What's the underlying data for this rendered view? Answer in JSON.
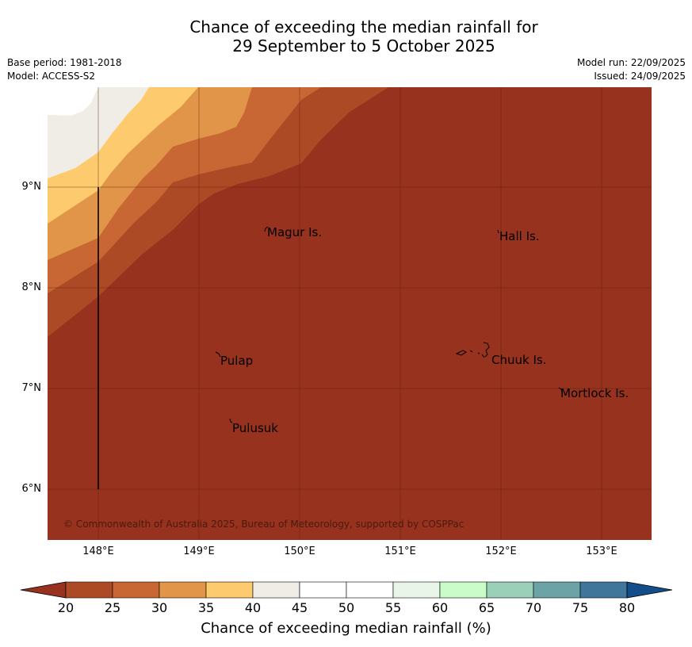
{
  "title": {
    "line1": "Chance of exceeding the median rainfall for",
    "line2": "29 September to 5 October 2025"
  },
  "meta": {
    "base_period": "Base period: 1981-2018",
    "model": "Model: ACCESS-S2",
    "model_run": "Model run: 22/09/2025",
    "issued": "Issued: 24/09/2025"
  },
  "map": {
    "latitude_labels": [
      "9°N",
      "8°N",
      "7°N",
      "6°N"
    ],
    "longitude_labels": [
      "148°E",
      "149°E",
      "150°E",
      "151°E",
      "152°E",
      "153°E"
    ],
    "places": [
      {
        "name": "Magur Is."
      },
      {
        "name": "Hall Is."
      },
      {
        "name": "Pulap"
      },
      {
        "name": "Chuuk Is."
      },
      {
        "name": "Mortlock Is."
      },
      {
        "name": "Pulusuk"
      }
    ],
    "copyright": "© Commonwealth of Australia 2025, Bureau of Meteorology, supported by COSPPac"
  },
  "colorbar": {
    "label": "Chance of exceeding median rainfall (%)",
    "ticks": [
      "20",
      "25",
      "30",
      "35",
      "40",
      "45",
      "50",
      "55",
      "60",
      "65",
      "70",
      "75",
      "80"
    ],
    "colors": [
      "#ad4a26",
      "#c86734",
      "#e09548",
      "#fdcb6e",
      "#f0ece6",
      "#ffffff",
      "#ffffff",
      "#eaf5ea",
      "#c9fcc9",
      "#9bd0b8",
      "#6ba3a7",
      "#3f7699"
    ],
    "low_extend_color": "#96321e",
    "high_extend_color": "#144e8a"
  },
  "legend_colors": {
    "below_20": "#96321e",
    "20_25": "#ad4a26",
    "25_30": "#c86734",
    "30_35": "#e09548",
    "35_40": "#fdcb6e",
    "40_45": "#f0ece6"
  }
}
